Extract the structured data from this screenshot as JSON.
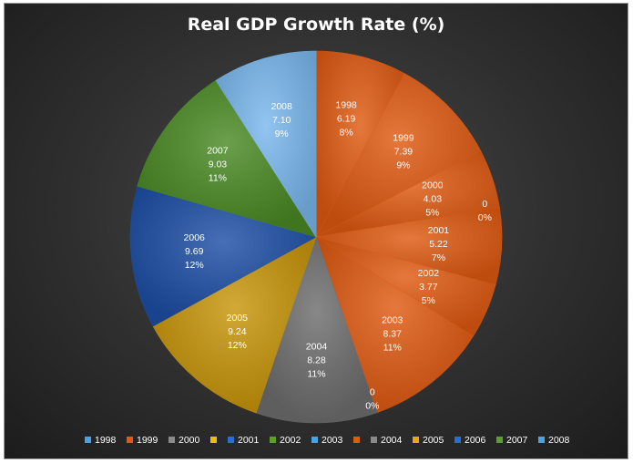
{
  "chart_data": {
    "type": "pie",
    "title": "Real GDP Growth Rate (%)",
    "slices": [
      {
        "legend": "1998",
        "category": "1998",
        "value": 6.19,
        "percent": "8%",
        "color": "#e05a12"
      },
      {
        "legend": "1999",
        "category": "1999",
        "value": 7.39,
        "percent": "9%",
        "color": "#e05a12"
      },
      {
        "legend": "2000",
        "category": "2000",
        "value": 4.03,
        "percent": "5%",
        "color": "#e05a12"
      },
      {
        "legend": "",
        "category": "0",
        "value": 0,
        "percent": "0%",
        "color": "#e05a12"
      },
      {
        "legend": "2001",
        "category": "2001",
        "value": 5.22,
        "percent": "7%",
        "color": "#e05a12"
      },
      {
        "legend": "2002",
        "category": "2002",
        "value": 3.77,
        "percent": "5%",
        "color": "#e05a12"
      },
      {
        "legend": "2003",
        "category": "2003",
        "value": 8.37,
        "percent": "11%",
        "color": "#e05a12"
      },
      {
        "legend": "",
        "category": "0",
        "value": 0,
        "percent": "0%",
        "color": "#e05a12"
      },
      {
        "legend": "2004",
        "category": "2004",
        "value": 8.28,
        "percent": "11%",
        "color": "#6e6e6e"
      },
      {
        "legend": "2005",
        "category": "2005",
        "value": 9.24,
        "percent": "12%",
        "color": "#c8960a"
      },
      {
        "legend": "2006",
        "category": "2006",
        "value": 9.69,
        "percent": "12%",
        "color": "#1d4fa6"
      },
      {
        "legend": "2007",
        "category": "2007",
        "value": 9.03,
        "percent": "11%",
        "color": "#4a8a24"
      },
      {
        "legend": "2008",
        "category": "2008",
        "value": 7.1,
        "percent": "9%",
        "color": "#7ab8ee"
      }
    ],
    "legend_markers": [
      {
        "label": "1998",
        "color": "#4aa3e0"
      },
      {
        "label": "1999",
        "color": "#e05a12"
      },
      {
        "label": "2000",
        "color": "#8a8a8a"
      },
      {
        "label": "",
        "color": "#e8c000"
      },
      {
        "label": "2001",
        "color": "#2a6fd0"
      },
      {
        "label": "2002",
        "color": "#5aa02a"
      },
      {
        "label": "2003",
        "color": "#4aa3e0"
      },
      {
        "label": "",
        "color": "#e05a12"
      },
      {
        "label": "2004",
        "color": "#8a8a8a"
      },
      {
        "label": "2005",
        "color": "#e8a800"
      },
      {
        "label": "2006",
        "color": "#2a6fd0"
      },
      {
        "label": "2007",
        "color": "#5aa02a"
      },
      {
        "label": "2008",
        "color": "#4aa3e0"
      }
    ],
    "legend_position": "bottom"
  }
}
